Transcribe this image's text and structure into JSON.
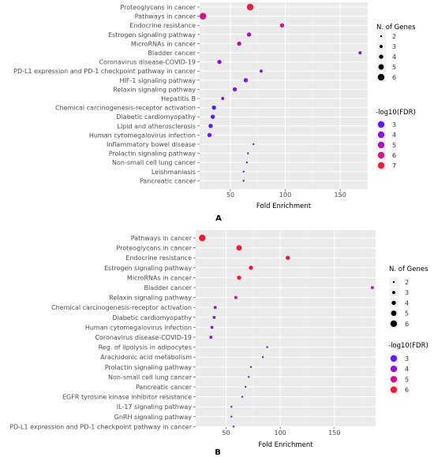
{
  "chart_data": [
    {
      "type": "scatter",
      "panel_label": "A",
      "xlabel": "Fold Enrichment",
      "ylabel": "",
      "xlim": [
        22,
        175
      ],
      "xticks": [
        50,
        100,
        150
      ],
      "grid": true,
      "legend_placement": "right",
      "size_legend": {
        "title": "N. of Genes",
        "values": [
          2,
          3,
          4,
          5,
          6
        ]
      },
      "color_legend": {
        "title": "-log10(FDR)",
        "values": [
          3,
          4,
          5,
          6,
          7
        ],
        "colors": [
          "#5B1FF2",
          "#8A14D8",
          "#B010B8",
          "#D4108A",
          "#EF1D3C"
        ]
      },
      "categories": [
        "Proteoglycans in cancer",
        "Pathways in cancer",
        "Endocrine resistance",
        "Estrogen signaling pathway",
        "MicroRNAs in cancer",
        "Bladder cancer",
        "Coronavirus disease-COVID-19",
        "PD-L1 expression and PD-1 checkpoint pathway in cancer",
        "HIF-1 signaling pathway",
        "Relaxin signaling pathway",
        "Hepatitis B",
        "Chemical carcinogenesis-receptor activation",
        "Diabetic cardiomyopathy",
        "Lipid and atherosclerosis",
        "Human cytomegalovirus infection",
        "Inflammatory bowel disease",
        "Prolactin signaling pathway",
        "Non-small cell lung cancer",
        "Leishmaniasis",
        "Pancreatic cancer"
      ],
      "x": [
        68,
        25,
        97,
        67,
        58,
        168,
        40,
        78,
        64,
        54,
        43,
        35,
        34,
        32,
        31,
        71,
        66,
        65,
        62,
        62
      ],
      "genes": [
        6,
        6,
        4,
        4,
        4,
        3,
        4,
        3,
        4,
        4,
        3,
        4,
        4,
        4,
        4,
        2,
        2,
        2,
        2,
        2
      ],
      "neglog10fdr": [
        7,
        6,
        6,
        5.5,
        5.5,
        4.5,
        4.5,
        4.5,
        4,
        4,
        4,
        3.5,
        3.5,
        3.5,
        3.5,
        3,
        3,
        3,
        3,
        3
      ]
    },
    {
      "type": "scatter",
      "panel_label": "B",
      "xlabel": "Fold Enrichment",
      "ylabel": "",
      "xlim": [
        22,
        188
      ],
      "xticks": [
        50,
        100,
        150
      ],
      "grid": true,
      "legend_placement": "right",
      "size_legend": {
        "title": "N. of Genes",
        "values": [
          2,
          3,
          4,
          5,
          6
        ]
      },
      "color_legend": {
        "title": "-log10(FDR)",
        "values": [
          3,
          4,
          5,
          6
        ],
        "colors": [
          "#5B1FF2",
          "#9615CF",
          "#CF1090",
          "#EE1C38"
        ]
      },
      "categories": [
        "Pathways in cancer",
        "Proteoglycans in cancer",
        "Endocrine resistance",
        "Estrogen signaling pathway",
        "MicroRNAs in cancer",
        "Bladder cancer",
        "Relaxin signaling pathway",
        "Chemical carcinogenesis-receptor activation",
        "Diabetic cardiomyopathy",
        "Human cytomegalovirus infection",
        "Coronavirus disease-COVID-19",
        "Reg. of lipolysis in adipocytes",
        "Arachidonic acid metabolism",
        "Prolactin signaling pathway",
        "Non-small cell lung cancer",
        "Pancreatic cancer",
        "EGFR tyrosine kinase inhibitor resistance",
        "IL-17 signaling pathway",
        "GnRH signaling pathway",
        "PD-L1 expression and PD-1 checkpoint pathway in cancer"
      ],
      "x": [
        28,
        62,
        107,
        73,
        62,
        185,
        59,
        40,
        39,
        37,
        36,
        88,
        84,
        73,
        71,
        68,
        65,
        55,
        55,
        57
      ],
      "genes": [
        6,
        5,
        4,
        4,
        4,
        3,
        3,
        3,
        3,
        3,
        3,
        2,
        2,
        2,
        2,
        2,
        2,
        2,
        2,
        2
      ],
      "neglog10fdr": [
        6,
        6,
        6,
        6,
        6,
        5,
        5,
        4,
        4,
        4,
        4,
        3,
        3,
        3,
        3,
        3,
        3,
        3,
        3,
        3
      ]
    }
  ]
}
